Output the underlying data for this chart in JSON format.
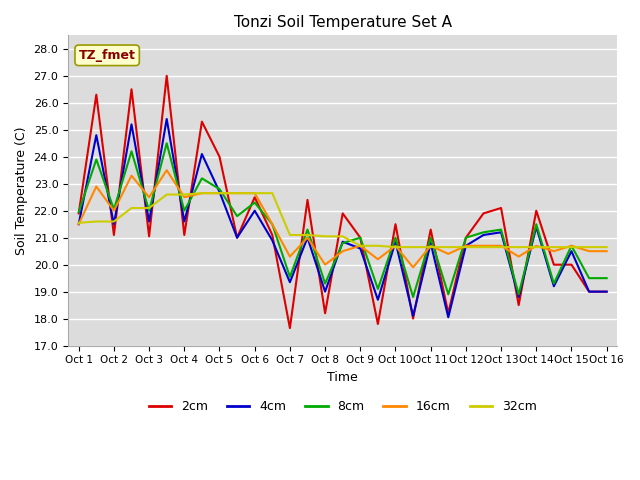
{
  "title": "Tonzi Soil Temperature Set A",
  "xlabel": "Time",
  "ylabel": "Soil Temperature (C)",
  "ylim": [
    17.0,
    28.5
  ],
  "yticks": [
    17.0,
    18.0,
    19.0,
    20.0,
    21.0,
    22.0,
    23.0,
    24.0,
    25.0,
    26.0,
    27.0,
    28.0
  ],
  "x_labels": [
    "Oct 1",
    "Oct 2",
    "Oct 3",
    "Oct 4",
    "Oct 5",
    "Oct 6",
    "Oct 7",
    "Oct 8",
    "Oct 9",
    "Oct 10",
    "Oct 11",
    "Oct 12",
    "Oct 13",
    "Oct 14",
    "Oct 15",
    "Oct 16"
  ],
  "annotation_text": "TZ_fmet",
  "bg_color": "#dcdcdc",
  "series": {
    "2cm": {
      "color": "#dd0000",
      "linewidth": 1.5,
      "values": [
        21.9,
        26.3,
        21.1,
        26.5,
        21.05,
        27.0,
        21.1,
        25.3,
        24.0,
        21.0,
        22.5,
        21.1,
        17.65,
        22.4,
        18.2,
        21.9,
        21.0,
        17.8,
        21.5,
        18.0,
        21.3,
        18.2,
        21.0,
        21.9,
        22.1,
        18.5,
        22.0,
        20.0,
        20.0,
        19.0,
        19.0
      ]
    },
    "4cm": {
      "color": "#0000cc",
      "linewidth": 1.5,
      "values": [
        21.5,
        24.8,
        21.5,
        25.2,
        21.6,
        25.4,
        21.6,
        24.1,
        22.7,
        21.0,
        22.0,
        20.9,
        19.35,
        21.0,
        19.0,
        20.85,
        20.6,
        18.7,
        20.85,
        18.1,
        20.8,
        18.05,
        20.7,
        21.1,
        21.2,
        18.8,
        21.4,
        19.2,
        20.5,
        19.0,
        19.0
      ]
    },
    "8cm": {
      "color": "#00aa00",
      "linewidth": 1.5,
      "values": [
        21.95,
        23.9,
        22.05,
        24.2,
        22.0,
        24.5,
        22.0,
        23.2,
        22.8,
        21.8,
        22.3,
        21.5,
        19.55,
        21.3,
        19.3,
        20.8,
        21.0,
        19.1,
        21.0,
        18.8,
        21.0,
        18.9,
        21.0,
        21.2,
        21.3,
        18.9,
        21.5,
        19.3,
        20.7,
        19.5,
        19.5
      ]
    },
    "16cm": {
      "color": "#ff8800",
      "linewidth": 1.5,
      "values": [
        21.5,
        22.9,
        22.0,
        23.3,
        22.5,
        23.5,
        22.5,
        22.65,
        22.65,
        22.65,
        22.65,
        21.5,
        20.3,
        21.0,
        20.0,
        20.5,
        20.7,
        20.2,
        20.7,
        19.9,
        20.7,
        20.4,
        20.7,
        20.7,
        20.7,
        20.3,
        20.7,
        20.5,
        20.7,
        20.5,
        20.5
      ]
    },
    "32cm": {
      "color": "#cccc00",
      "linewidth": 1.5,
      "values": [
        21.55,
        21.6,
        21.6,
        22.1,
        22.1,
        22.6,
        22.6,
        22.65,
        22.65,
        22.65,
        22.65,
        22.65,
        21.1,
        21.1,
        21.05,
        21.05,
        20.7,
        20.7,
        20.65,
        20.65,
        20.65,
        20.65,
        20.65,
        20.65,
        20.65,
        20.65,
        20.65,
        20.65,
        20.65,
        20.65,
        20.65
      ]
    }
  }
}
